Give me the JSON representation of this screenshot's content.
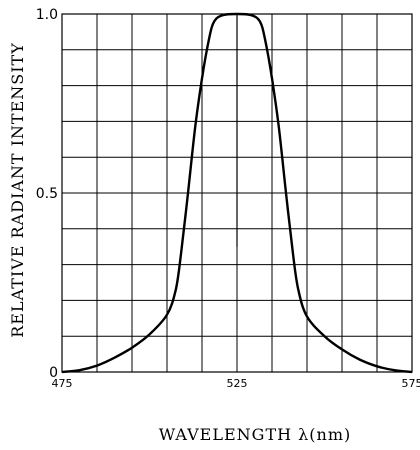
{
  "chart_data": {
    "type": "line",
    "xlabel": "WAVELENGTH  λ(nm)",
    "ylabel": "RELATIVE  RADIANT  INTENSITY",
    "xlim": [
      475,
      575
    ],
    "ylim": [
      0,
      1.0
    ],
    "x_ticks": [
      {
        "value": 475,
        "label": "475"
      },
      {
        "value": 525,
        "label": "525"
      },
      {
        "value": 575,
        "label": "575"
      }
    ],
    "y_ticks": [
      {
        "value": 0,
        "label": "0"
      },
      {
        "value": 0.5,
        "label": "0.5"
      },
      {
        "value": 1.0,
        "label": "1.0"
      }
    ],
    "grid": {
      "x_divisions": 10,
      "y_divisions": 10
    },
    "center_marker": {
      "x": 525,
      "y_from": 0.35,
      "y_to": 1.0
    },
    "series": [
      {
        "color": "#000000",
        "points": [
          [
            475,
            0.0
          ],
          [
            480,
            0.005
          ],
          [
            485,
            0.018
          ],
          [
            490,
            0.04
          ],
          [
            495,
            0.068
          ],
          [
            500,
            0.105
          ],
          [
            505,
            0.16
          ],
          [
            507.5,
            0.23
          ],
          [
            509,
            0.33
          ],
          [
            511,
            0.5
          ],
          [
            513,
            0.68
          ],
          [
            515,
            0.82
          ],
          [
            517,
            0.93
          ],
          [
            518.5,
            0.98
          ],
          [
            521,
            0.997
          ],
          [
            525,
            1.0
          ],
          [
            529,
            0.997
          ],
          [
            531.5,
            0.98
          ],
          [
            533,
            0.93
          ],
          [
            535,
            0.82
          ],
          [
            537,
            0.68
          ],
          [
            539,
            0.5
          ],
          [
            541,
            0.33
          ],
          [
            542.5,
            0.23
          ],
          [
            545,
            0.155
          ],
          [
            550,
            0.1
          ],
          [
            555,
            0.063
          ],
          [
            560,
            0.035
          ],
          [
            565,
            0.016
          ],
          [
            570,
            0.005
          ],
          [
            575,
            0.0
          ]
        ]
      }
    ]
  }
}
